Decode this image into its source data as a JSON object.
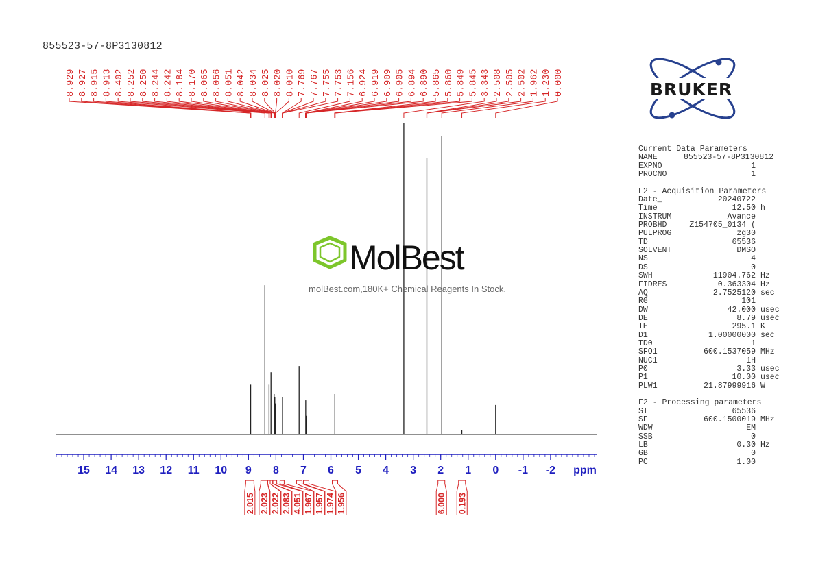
{
  "sample_name": "855523-57-8P3130812",
  "watermark": {
    "brand": "MolBest",
    "tagline": "molBest.com,180K+ Chemical Reagents In Stock."
  },
  "logo": {
    "text": "BRUKER"
  },
  "parameters": [
    {
      "heading": "Current Data Parameters",
      "rows": [
        {
          "key": "NAME",
          "value": "855523-57-8P3130812",
          "unit": ""
        },
        {
          "key": "EXPNO",
          "value": "1",
          "unit": ""
        },
        {
          "key": "PROCNO",
          "value": "1",
          "unit": ""
        }
      ]
    },
    {
      "heading": "F2 - Acquisition Parameters",
      "rows": [
        {
          "key": "Date_",
          "value": "20240722",
          "unit": ""
        },
        {
          "key": "Time",
          "value": "12.50",
          "unit": "h"
        },
        {
          "key": "INSTRUM",
          "value": "Avance",
          "unit": ""
        },
        {
          "key": "PROBHD",
          "value": "Z154705_0134 (",
          "unit": ""
        },
        {
          "key": "PULPROG",
          "value": "zg30",
          "unit": ""
        },
        {
          "key": "TD",
          "value": "65536",
          "unit": ""
        },
        {
          "key": "SOLVENT",
          "value": "DMSO",
          "unit": ""
        },
        {
          "key": "NS",
          "value": "4",
          "unit": ""
        },
        {
          "key": "DS",
          "value": "0",
          "unit": ""
        },
        {
          "key": "SWH",
          "value": "11904.762",
          "unit": "Hz"
        },
        {
          "key": "FIDRES",
          "value": "0.363304",
          "unit": "Hz"
        },
        {
          "key": "AQ",
          "value": "2.7525120",
          "unit": "sec"
        },
        {
          "key": "RG",
          "value": "101",
          "unit": ""
        },
        {
          "key": "DW",
          "value": "42.000",
          "unit": "usec"
        },
        {
          "key": "DE",
          "value": "8.79",
          "unit": "usec"
        },
        {
          "key": "TE",
          "value": "295.1",
          "unit": "K"
        },
        {
          "key": "D1",
          "value": "1.00000000",
          "unit": "sec"
        },
        {
          "key": "TD0",
          "value": "1",
          "unit": ""
        },
        {
          "key": "SFO1",
          "value": "600.1537059",
          "unit": "MHz"
        },
        {
          "key": "NUC1",
          "value": "1H",
          "unit": ""
        },
        {
          "key": "P0",
          "value": "3.33",
          "unit": "usec"
        },
        {
          "key": "P1",
          "value": "10.00",
          "unit": "usec"
        },
        {
          "key": "PLW1",
          "value": "21.87999916",
          "unit": "W"
        }
      ]
    },
    {
      "heading": "F2 - Processing parameters",
      "rows": [
        {
          "key": "SI",
          "value": "65536",
          "unit": ""
        },
        {
          "key": "SF",
          "value": "600.1500019",
          "unit": "MHz"
        },
        {
          "key": "WDW",
          "value": "EM",
          "unit": ""
        },
        {
          "key": "SSB",
          "value": "0",
          "unit": ""
        },
        {
          "key": "LB",
          "value": "0.30",
          "unit": "Hz"
        },
        {
          "key": "GB",
          "value": "0",
          "unit": ""
        },
        {
          "key": "PC",
          "value": "1.00",
          "unit": ""
        }
      ]
    }
  ],
  "colors": {
    "peak_labels": "#d62728",
    "axis": "#1f1fbf",
    "spectrum": "#222222",
    "watermark_ring": "#7dc62b",
    "logo_ring": "#27418f"
  },
  "chart_data": {
    "type": "line",
    "xlabel": "ppm",
    "xlim": [
      16,
      -3.7
    ],
    "x_reversed": true,
    "x_ticks": [
      15,
      14,
      13,
      12,
      11,
      10,
      9,
      8,
      7,
      6,
      5,
      4,
      3,
      2,
      1,
      0,
      -1,
      -2
    ],
    "peak_labels": [
      "8.929",
      "8.927",
      "8.915",
      "8.913",
      "8.402",
      "8.252",
      "8.250",
      "8.244",
      "8.242",
      "8.184",
      "8.170",
      "8.065",
      "8.056",
      "8.051",
      "8.042",
      "8.034",
      "8.025",
      "8.020",
      "8.010",
      "7.769",
      "7.767",
      "7.755",
      "7.753",
      "7.156",
      "6.924",
      "6.919",
      "6.909",
      "6.905",
      "6.894",
      "6.890",
      "5.865",
      "5.860",
      "5.849",
      "5.845",
      "3.343",
      "2.508",
      "2.505",
      "2.502",
      "1.962",
      "1.230",
      "0.000"
    ],
    "peaks": [
      {
        "ppm": 8.92,
        "height": 0.16
      },
      {
        "ppm": 8.402,
        "height": 0.48
      },
      {
        "ppm": 8.25,
        "height": 0.16
      },
      {
        "ppm": 8.18,
        "height": 0.2
      },
      {
        "ppm": 8.065,
        "height": 0.13
      },
      {
        "ppm": 8.04,
        "height": 0.12
      },
      {
        "ppm": 8.015,
        "height": 0.1
      },
      {
        "ppm": 7.76,
        "height": 0.12
      },
      {
        "ppm": 7.156,
        "height": 0.22
      },
      {
        "ppm": 6.915,
        "height": 0.11
      },
      {
        "ppm": 6.895,
        "height": 0.06
      },
      {
        "ppm": 5.855,
        "height": 0.13
      },
      {
        "ppm": 3.343,
        "height": 1.0
      },
      {
        "ppm": 2.505,
        "height": 0.89
      },
      {
        "ppm": 1.962,
        "height": 0.96
      },
      {
        "ppm": 1.23,
        "height": 0.015
      },
      {
        "ppm": 0.0,
        "height": 0.095
      }
    ],
    "integrals": [
      {
        "value": "2.015",
        "from": 9.1,
        "to": 8.8
      },
      {
        "value": "2.023",
        "from": 8.55,
        "to": 8.3
      },
      {
        "value": "2.022",
        "from": 8.3,
        "to": 8.21
      },
      {
        "value": "2.083",
        "from": 8.21,
        "to": 8.12
      },
      {
        "value": "4.051",
        "from": 8.11,
        "to": 7.97
      },
      {
        "value": "1.967",
        "from": 7.85,
        "to": 7.7
      },
      {
        "value": "1.957",
        "from": 7.25,
        "to": 7.05
      },
      {
        "value": "1.974",
        "from": 7.0,
        "to": 6.8
      },
      {
        "value": "1.956",
        "from": 5.95,
        "to": 5.75
      },
      {
        "value": "6.000",
        "from": 2.1,
        "to": 1.85
      },
      {
        "value": "0.193",
        "from": 1.35,
        "to": 1.1
      }
    ]
  }
}
